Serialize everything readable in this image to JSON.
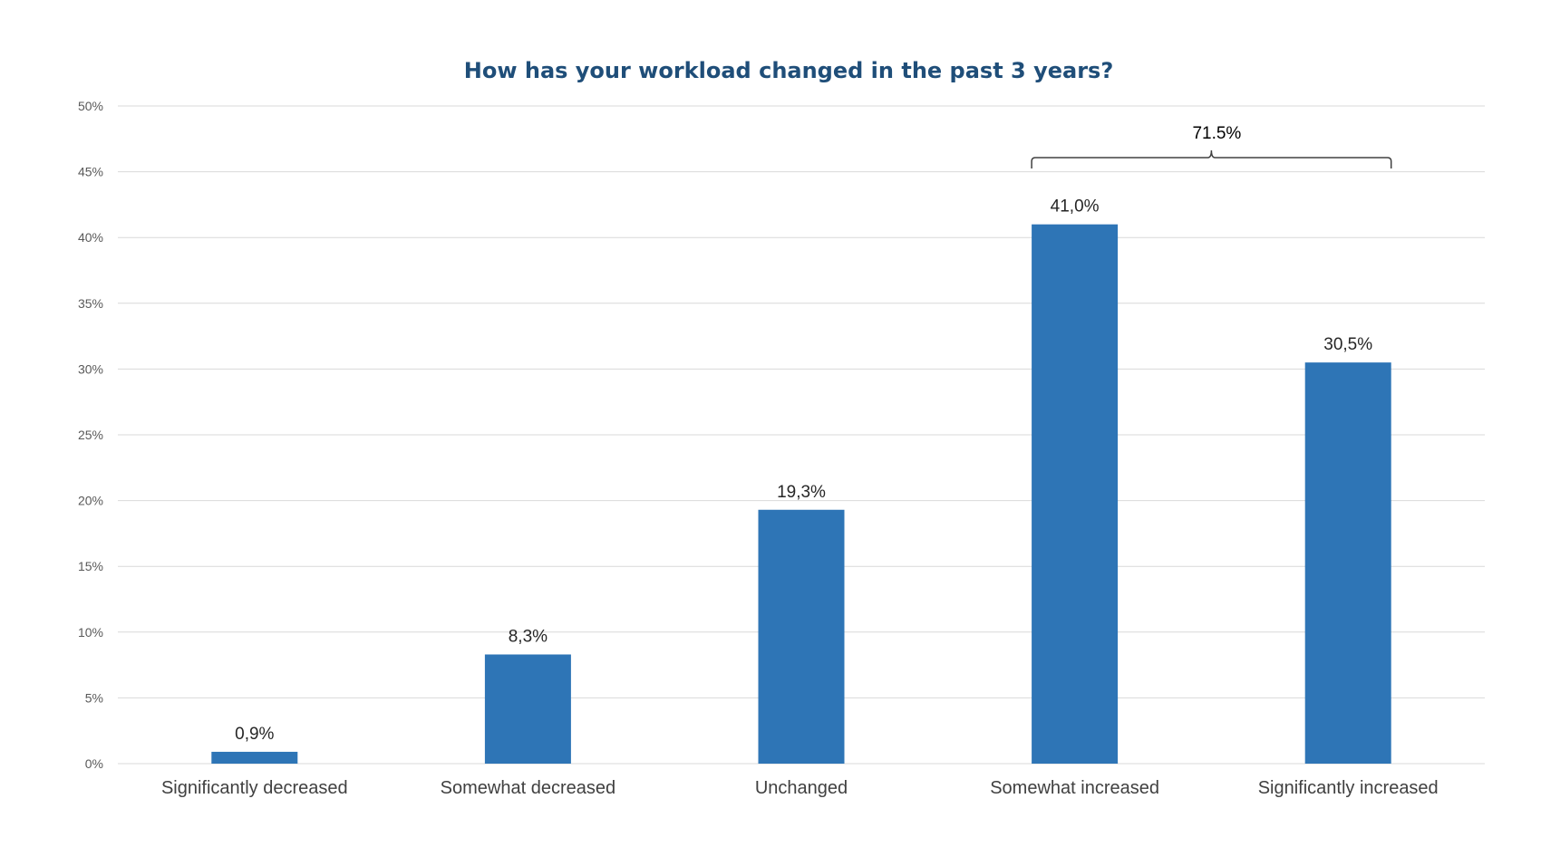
{
  "chart_data": {
    "type": "bar",
    "title": "How has your workload changed in the past 3 years?",
    "xlabel": "",
    "ylabel": "",
    "categories": [
      "Significantly decreased",
      "Somewhat decreased",
      "Unchanged",
      "Somewhat increased",
      "Significantly increased"
    ],
    "values": [
      0.9,
      8.3,
      19.3,
      41.0,
      30.5
    ],
    "data_labels": [
      "0,9%",
      "8,3%",
      "19,3%",
      "41,0%",
      "30,5%"
    ],
    "ylim": [
      0,
      50
    ],
    "yticks": [
      0,
      5,
      10,
      15,
      20,
      25,
      30,
      35,
      40,
      45,
      50
    ],
    "ytick_labels": [
      "0%",
      "5%",
      "10%",
      "15%",
      "20%",
      "25%",
      "30%",
      "35%",
      "40%",
      "45%",
      "50%"
    ],
    "grid": true,
    "legend": "none",
    "bar_color": "#2E75B6",
    "annotations": [
      {
        "type": "bracket",
        "text": "71.5%",
        "spans": [
          "Somewhat increased",
          "Significantly increased"
        ]
      }
    ]
  }
}
